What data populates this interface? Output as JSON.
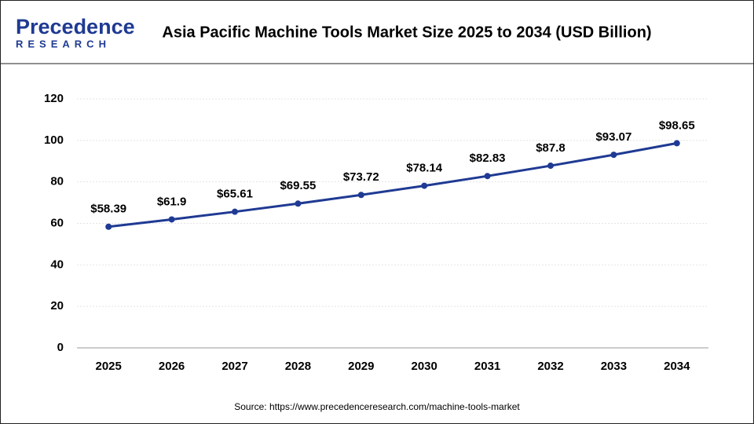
{
  "chart_data": {
    "type": "line",
    "title": "Asia Pacific Machine Tools Market Size 2025 to 2034 (USD Billion)",
    "logo": {
      "name": "Precedence",
      "tagline": "RESEARCH"
    },
    "source": "Source: https://www.precedenceresearch.com/machine-tools-market",
    "categories": [
      "2025",
      "2026",
      "2027",
      "2028",
      "2029",
      "2030",
      "2031",
      "2032",
      "2033",
      "2034"
    ],
    "series": [
      {
        "name": "Market Size",
        "color": "#1f3a93",
        "values": [
          58.39,
          61.9,
          65.61,
          69.55,
          73.72,
          78.14,
          82.83,
          87.8,
          93.07,
          98.65
        ],
        "value_labels": [
          "$58.39",
          "$61.9",
          "$65.61",
          "$69.55",
          "$73.72",
          "$78.14",
          "$82.83",
          "$87.8",
          "$93.07",
          "$98.65"
        ]
      }
    ],
    "ylim": [
      0,
      120
    ],
    "yticks": [
      0,
      20,
      40,
      60,
      80,
      100,
      120
    ],
    "grid": true
  }
}
